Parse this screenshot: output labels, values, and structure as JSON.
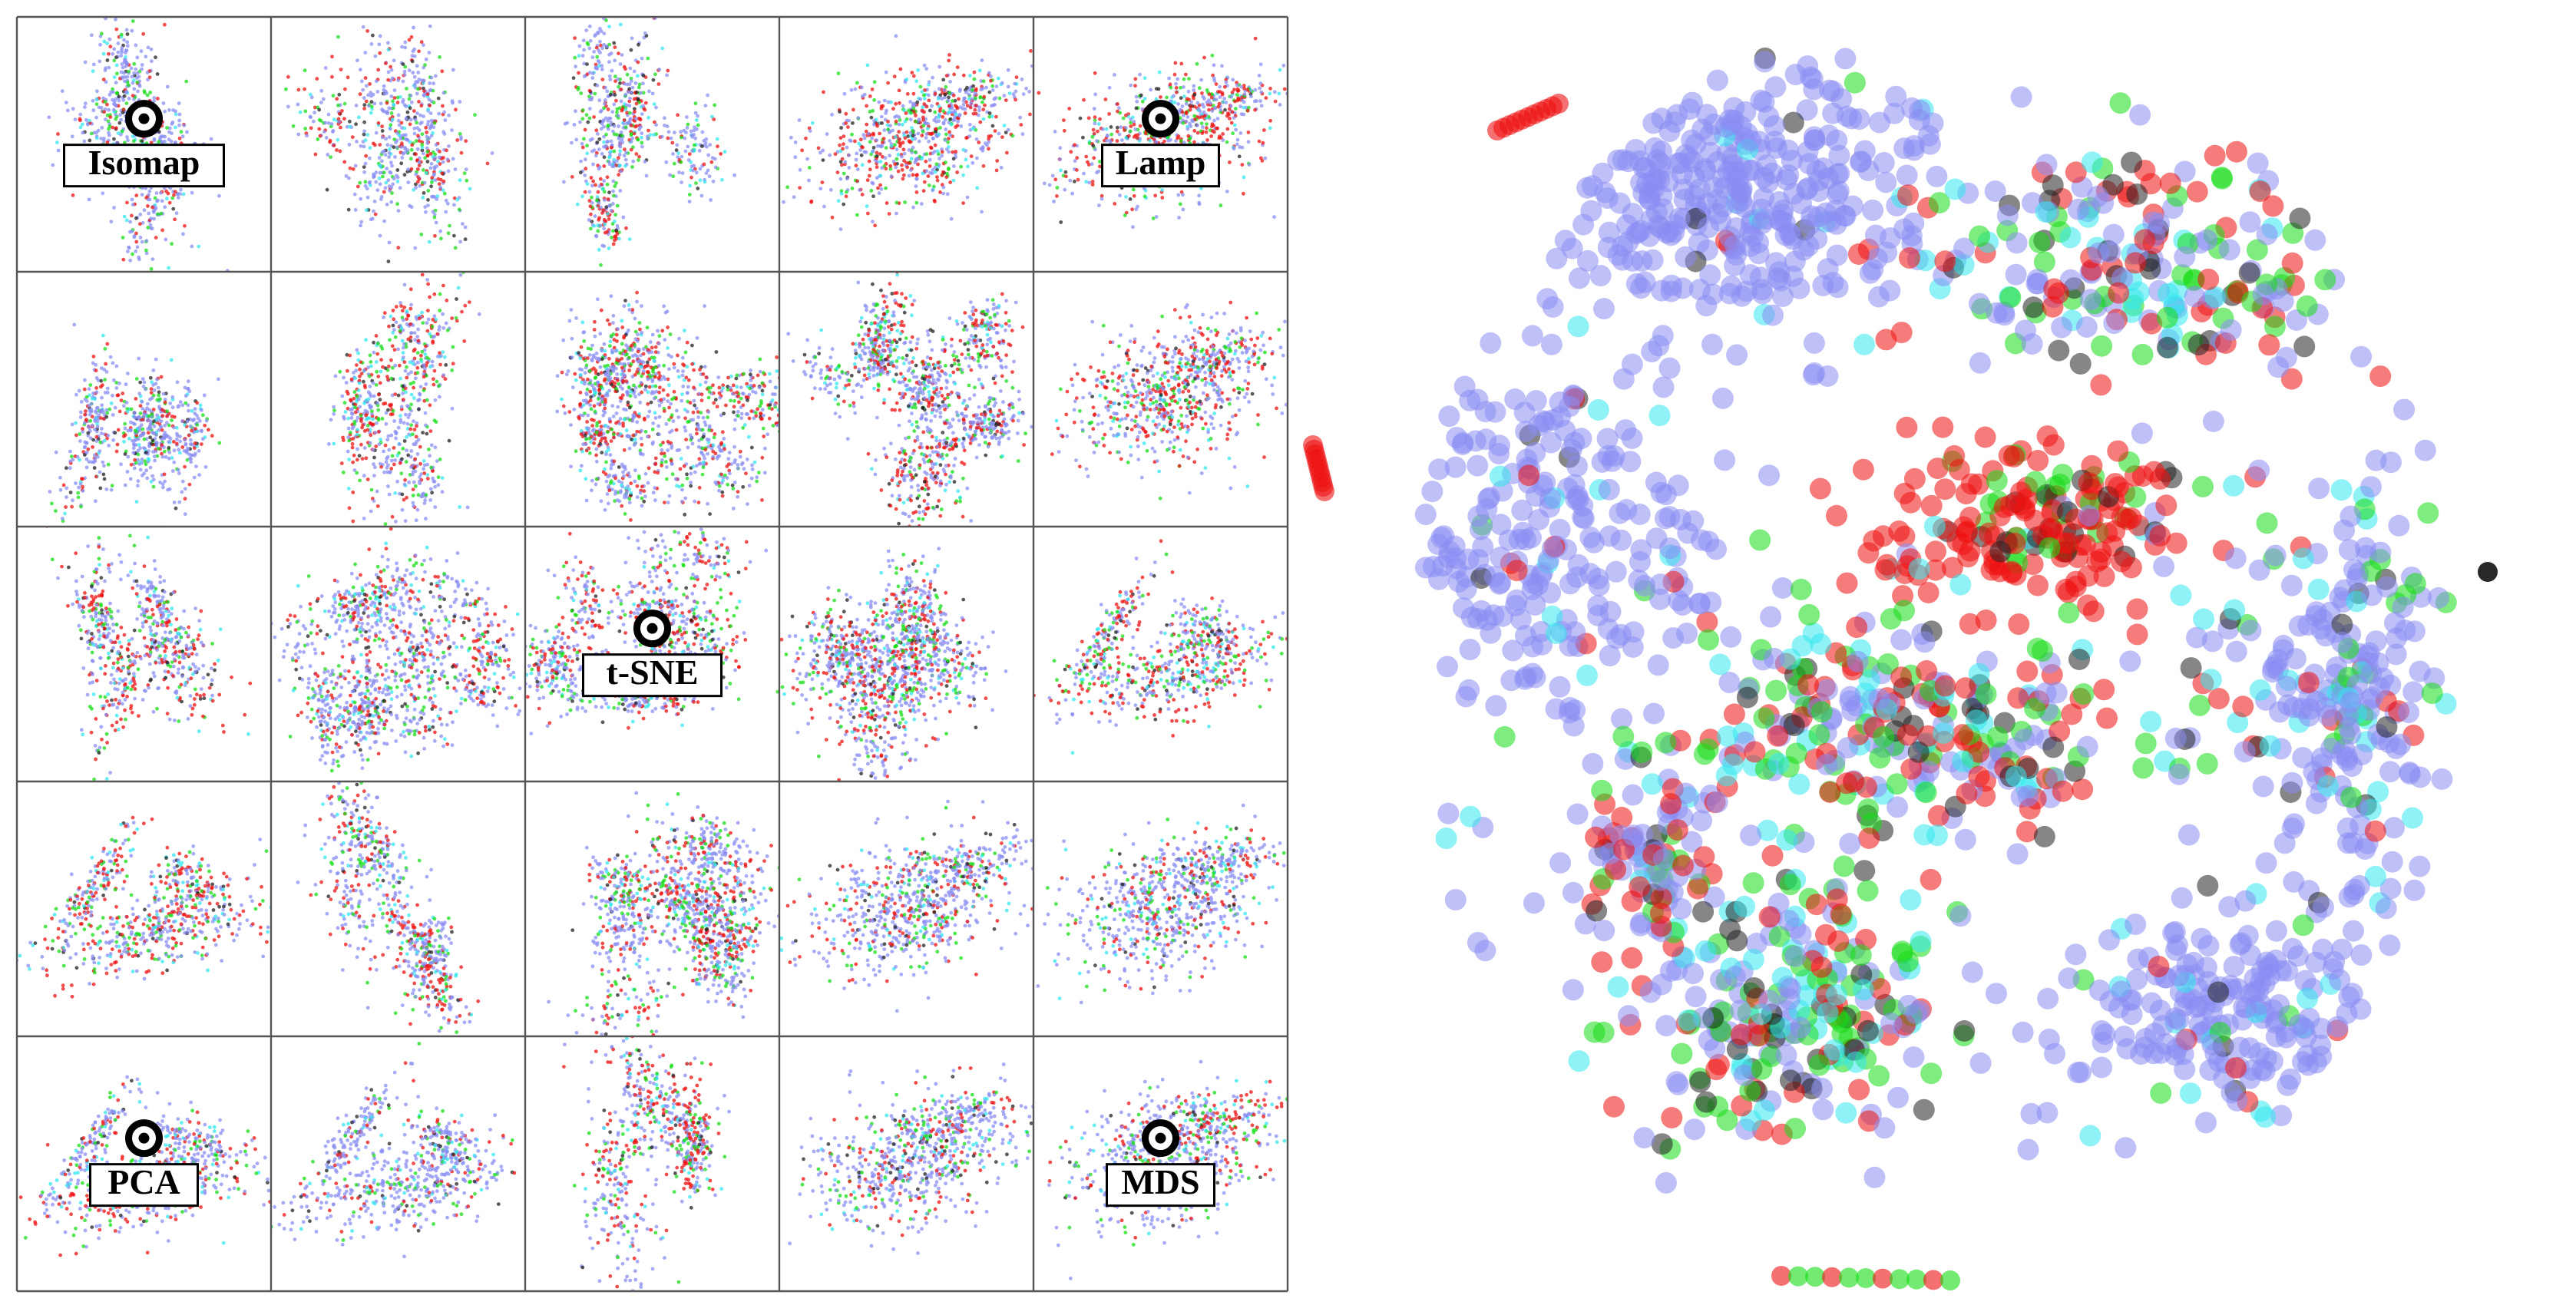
{
  "chart_data": {
    "type": "scatter",
    "title": "",
    "xlabel": "",
    "ylabel": "",
    "grid": {
      "rows": 5,
      "cols": 5
    },
    "palette": {
      "blue": "#8a8df2",
      "red": "#ee1111",
      "green": "#16dd16",
      "cyan": "#33e7ef",
      "black": "#222222"
    },
    "anchors": [
      {
        "label": "Isomap",
        "row": 0,
        "col": 0
      },
      {
        "label": "Lamp",
        "row": 0,
        "col": 4
      },
      {
        "label": "t-SNE",
        "row": 2,
        "col": 2
      },
      {
        "label": "PCA",
        "row": 4,
        "col": 0
      },
      {
        "label": "MDS",
        "row": 4,
        "col": 4
      }
    ]
  }
}
